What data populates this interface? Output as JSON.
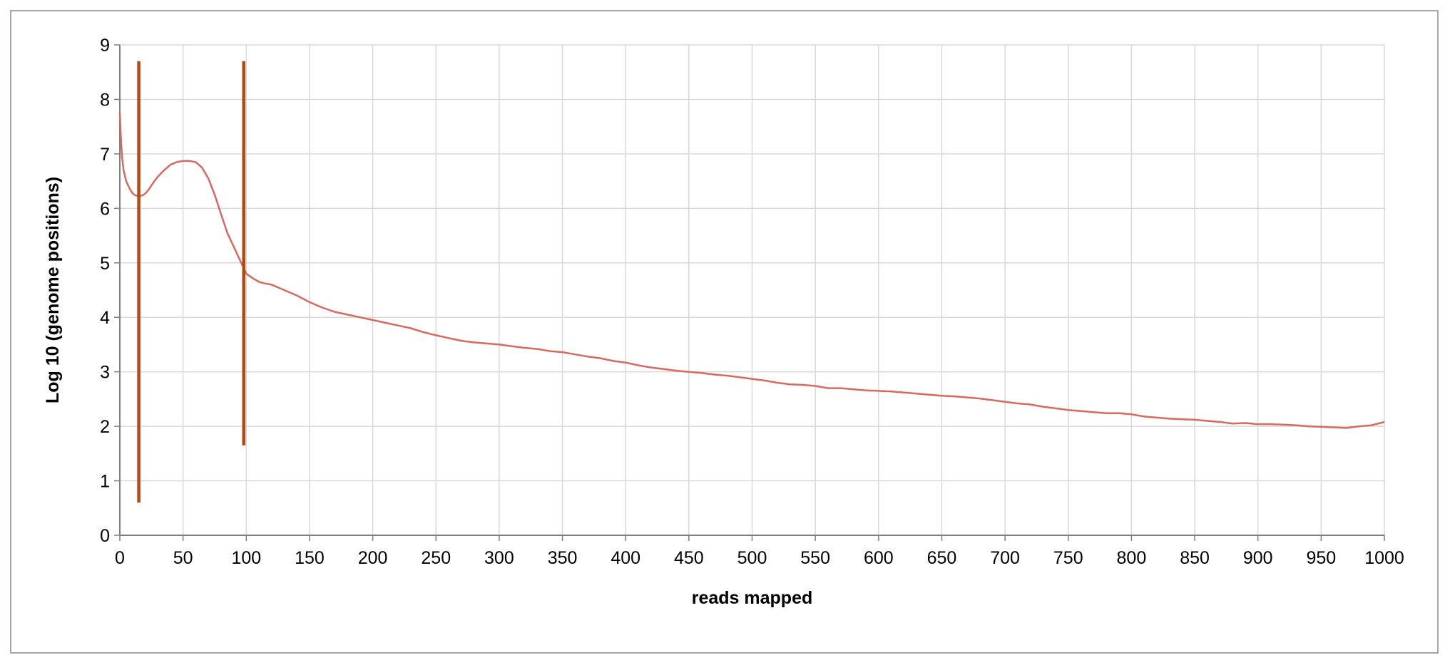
{
  "chart_data": {
    "type": "line",
    "title": "",
    "xlabel": "reads mapped",
    "ylabel": "Log 10 (genome positions)",
    "xlim": [
      0,
      1000
    ],
    "ylim": [
      0,
      9
    ],
    "x_ticks": [
      "0",
      "50",
      "100",
      "150",
      "200",
      "250",
      "300",
      "350",
      "400",
      "450",
      "500",
      "550",
      "600",
      "650",
      "700",
      "750",
      "800",
      "850",
      "900",
      "950",
      "1000"
    ],
    "y_ticks": [
      "0",
      "1",
      "2",
      "3",
      "4",
      "5",
      "6",
      "7",
      "8",
      "9"
    ],
    "grid": true,
    "legend": "none",
    "colors": {
      "series": "#d9695f",
      "markers": "#b34a12",
      "grid": "#d9d9d9",
      "axis": "#7f7f7f",
      "frame": "#a6a6a6"
    },
    "series": [
      {
        "x": [
          0,
          1,
          2,
          3,
          4,
          5,
          6,
          8,
          10,
          12,
          14,
          16,
          18,
          20,
          22,
          25,
          28,
          30,
          35,
          40,
          45,
          50,
          55,
          60,
          65,
          70,
          75,
          80,
          85,
          90,
          95,
          98,
          100,
          105,
          110,
          115,
          120,
          125,
          130,
          140,
          150,
          160,
          170,
          180,
          190,
          200,
          210,
          220,
          230,
          240,
          250,
          260,
          270,
          280,
          290,
          300,
          310,
          320,
          330,
          340,
          350,
          360,
          370,
          380,
          390,
          400,
          410,
          420,
          430,
          440,
          450,
          460,
          470,
          480,
          490,
          500,
          510,
          520,
          530,
          540,
          550,
          560,
          570,
          580,
          590,
          600,
          610,
          620,
          630,
          640,
          650,
          660,
          670,
          680,
          690,
          700,
          710,
          720,
          730,
          740,
          750,
          760,
          770,
          780,
          790,
          800,
          810,
          820,
          830,
          840,
          850,
          860,
          870,
          880,
          890,
          900,
          910,
          920,
          930,
          940,
          950,
          960,
          970,
          980,
          990,
          1000
        ],
        "values": [
          7.75,
          7.2,
          6.9,
          6.7,
          6.6,
          6.5,
          6.45,
          6.35,
          6.28,
          6.24,
          6.23,
          6.23,
          6.24,
          6.27,
          6.32,
          6.42,
          6.52,
          6.58,
          6.7,
          6.8,
          6.85,
          6.87,
          6.87,
          6.85,
          6.75,
          6.55,
          6.25,
          5.9,
          5.55,
          5.3,
          5.05,
          4.9,
          4.8,
          4.72,
          4.65,
          4.62,
          4.6,
          4.55,
          4.5,
          4.4,
          4.28,
          4.18,
          4.1,
          4.05,
          4.0,
          3.95,
          3.9,
          3.85,
          3.8,
          3.73,
          3.67,
          3.62,
          3.57,
          3.54,
          3.52,
          3.5,
          3.47,
          3.44,
          3.42,
          3.38,
          3.36,
          3.32,
          3.28,
          3.25,
          3.2,
          3.17,
          3.12,
          3.08,
          3.05,
          3.02,
          3.0,
          2.98,
          2.95,
          2.93,
          2.9,
          2.87,
          2.84,
          2.8,
          2.77,
          2.76,
          2.74,
          2.7,
          2.7,
          2.68,
          2.66,
          2.65,
          2.64,
          2.62,
          2.6,
          2.58,
          2.56,
          2.55,
          2.53,
          2.51,
          2.48,
          2.45,
          2.42,
          2.4,
          2.36,
          2.33,
          2.3,
          2.28,
          2.26,
          2.24,
          2.24,
          2.22,
          2.18,
          2.16,
          2.14,
          2.13,
          2.12,
          2.1,
          2.08,
          2.05,
          2.06,
          2.04,
          2.04,
          2.03,
          2.02,
          2.0,
          1.99,
          1.98,
          1.97,
          2.0,
          2.02,
          2.08
        ]
      }
    ],
    "vertical_markers": [
      {
        "x": 15,
        "y_range": [
          0.6,
          8.7
        ]
      },
      {
        "x": 98,
        "y_range": [
          1.65,
          8.7
        ]
      }
    ]
  }
}
